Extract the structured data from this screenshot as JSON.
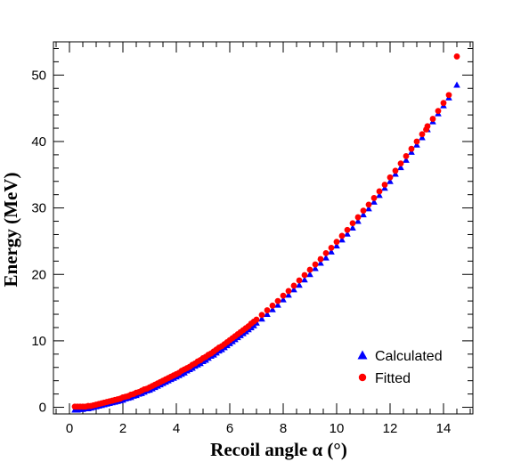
{
  "chart_data": {
    "type": "scatter",
    "title": "",
    "xlabel": "Recoil angle α (°)",
    "ylabel": "Energy (MeV)",
    "xlim": [
      -0.6,
      15.1
    ],
    "ylim": [
      -1.0,
      55.0
    ],
    "xticks": [
      "0",
      "2",
      "4",
      "6",
      "8",
      "10",
      "12",
      "14"
    ],
    "yticks": [
      "0",
      "10",
      "20",
      "30",
      "40",
      "50"
    ],
    "grid": false,
    "legend_position": "bottom-right",
    "series": [
      {
        "name": "Calculated",
        "marker": "triangle",
        "color": "#0000ff",
        "x": [
          0.2,
          0.3,
          0.4,
          0.5,
          0.6,
          0.7,
          0.8,
          0.9,
          1.0,
          1.1,
          1.2,
          1.3,
          1.4,
          1.5,
          1.6,
          1.7,
          1.8,
          1.9,
          2.0,
          2.1,
          2.2,
          2.3,
          2.4,
          2.5,
          2.6,
          2.7,
          2.8,
          2.9,
          3.0,
          3.1,
          3.2,
          3.3,
          3.4,
          3.5,
          3.6,
          3.7,
          3.8,
          3.9,
          4.0,
          4.1,
          4.2,
          4.3,
          4.4,
          4.5,
          4.6,
          4.7,
          4.8,
          4.9,
          5.0,
          5.1,
          5.2,
          5.3,
          5.4,
          5.5,
          5.6,
          5.7,
          5.8,
          5.9,
          6.0,
          6.1,
          6.2,
          6.3,
          6.4,
          6.5,
          6.6,
          6.7,
          6.8,
          6.9,
          7.0,
          7.2,
          7.4,
          7.6,
          7.8,
          8.0,
          8.2,
          8.4,
          8.6,
          8.8,
          9.0,
          9.2,
          9.4,
          9.6,
          9.8,
          10.0,
          10.2,
          10.4,
          10.6,
          10.8,
          11.0,
          11.2,
          11.4,
          11.6,
          11.8,
          12.0,
          12.2,
          12.4,
          12.6,
          12.8,
          13.0,
          13.2,
          13.4,
          13.6,
          13.8,
          14.0,
          14.2,
          14.5
        ],
        "y": [
          -0.4,
          -0.4,
          -0.3,
          -0.3,
          -0.2,
          -0.2,
          -0.1,
          0.0,
          0.1,
          0.2,
          0.3,
          0.4,
          0.5,
          0.6,
          0.7,
          0.8,
          0.9,
          1.0,
          1.1,
          1.3,
          1.4,
          1.5,
          1.7,
          1.8,
          2.0,
          2.1,
          2.3,
          2.5,
          2.6,
          2.8,
          3.0,
          3.2,
          3.4,
          3.6,
          3.8,
          4.0,
          4.2,
          4.4,
          4.6,
          4.8,
          5.0,
          5.2,
          5.5,
          5.7,
          5.9,
          6.2,
          6.4,
          6.6,
          6.9,
          7.1,
          7.4,
          7.7,
          7.9,
          8.2,
          8.5,
          8.7,
          9.0,
          9.3,
          9.6,
          9.9,
          10.2,
          10.5,
          10.8,
          11.1,
          11.4,
          11.7,
          12.0,
          12.3,
          12.7,
          13.3,
          14.0,
          14.7,
          15.4,
          16.2,
          16.9,
          17.7,
          18.4,
          19.2,
          20.0,
          20.9,
          21.7,
          22.5,
          23.4,
          24.3,
          25.2,
          26.1,
          27.0,
          28.0,
          29.0,
          29.9,
          30.9,
          31.9,
          33.0,
          34.0,
          35.1,
          36.1,
          37.2,
          38.4,
          39.5,
          40.6,
          41.8,
          43.0,
          44.2,
          45.4,
          46.6,
          48.5
        ]
      },
      {
        "name": "Fitted",
        "marker": "circle",
        "color": "#ff0000",
        "x": [
          0.2,
          0.3,
          0.4,
          0.5,
          0.6,
          0.7,
          0.8,
          0.9,
          1.0,
          1.1,
          1.2,
          1.3,
          1.4,
          1.5,
          1.6,
          1.7,
          1.8,
          1.9,
          2.0,
          2.1,
          2.2,
          2.3,
          2.4,
          2.5,
          2.6,
          2.7,
          2.8,
          2.9,
          3.0,
          3.1,
          3.2,
          3.3,
          3.4,
          3.5,
          3.6,
          3.7,
          3.8,
          3.9,
          4.0,
          4.1,
          4.2,
          4.3,
          4.4,
          4.5,
          4.6,
          4.7,
          4.8,
          4.9,
          5.0,
          5.1,
          5.2,
          5.3,
          5.4,
          5.5,
          5.6,
          5.7,
          5.8,
          5.9,
          6.0,
          6.1,
          6.2,
          6.3,
          6.4,
          6.5,
          6.6,
          6.7,
          6.8,
          6.9,
          7.0,
          7.2,
          7.4,
          7.6,
          7.8,
          8.0,
          8.2,
          8.4,
          8.6,
          8.8,
          9.0,
          9.2,
          9.4,
          9.6,
          9.8,
          10.0,
          10.2,
          10.4,
          10.6,
          10.8,
          11.0,
          11.2,
          11.4,
          11.6,
          11.8,
          12.0,
          12.2,
          12.4,
          12.6,
          12.8,
          13.0,
          13.2,
          13.35,
          13.4,
          13.6,
          13.8,
          14.0,
          14.2,
          14.5
        ],
        "y": [
          0.1,
          0.1,
          0.1,
          0.1,
          0.1,
          0.2,
          0.2,
          0.3,
          0.4,
          0.5,
          0.6,
          0.7,
          0.8,
          0.9,
          1.0,
          1.1,
          1.2,
          1.3,
          1.5,
          1.6,
          1.7,
          1.9,
          2.0,
          2.2,
          2.3,
          2.5,
          2.7,
          2.8,
          3.0,
          3.2,
          3.4,
          3.6,
          3.8,
          4.0,
          4.2,
          4.4,
          4.6,
          4.8,
          5.0,
          5.2,
          5.5,
          5.7,
          5.9,
          6.1,
          6.4,
          6.6,
          6.9,
          7.1,
          7.4,
          7.6,
          7.9,
          8.1,
          8.4,
          8.7,
          9.0,
          9.2,
          9.5,
          9.8,
          10.1,
          10.4,
          10.7,
          11.0,
          11.3,
          11.6,
          11.9,
          12.2,
          12.6,
          12.9,
          13.2,
          13.9,
          14.6,
          15.3,
          16.0,
          16.8,
          17.5,
          18.3,
          19.1,
          19.9,
          20.7,
          21.5,
          22.3,
          23.2,
          24.0,
          24.9,
          25.8,
          26.7,
          27.7,
          28.6,
          29.6,
          30.5,
          31.5,
          32.5,
          33.5,
          34.6,
          35.6,
          36.7,
          37.8,
          38.9,
          40.0,
          41.1,
          41.8,
          42.3,
          43.4,
          44.6,
          45.8,
          47.0,
          52.8
        ]
      }
    ]
  }
}
